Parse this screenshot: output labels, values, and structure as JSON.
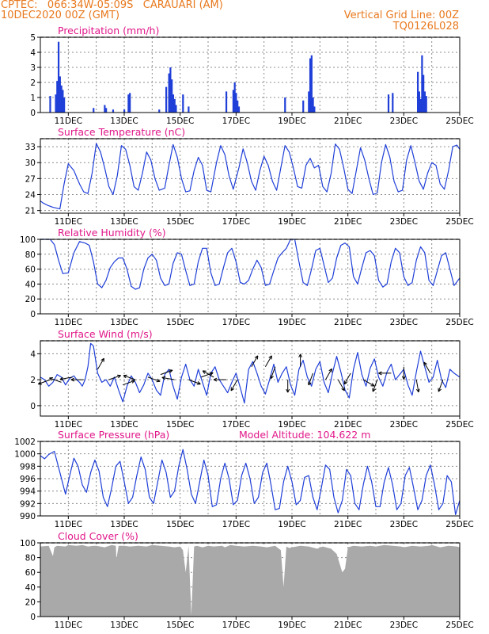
{
  "header": {
    "line1": "CPTEC:   066:34W-05:09S   CARAUARI (AM)",
    "line2": "10DEC2020 00Z (GMT)",
    "grid_note": "Vertical Grid Line: 00Z",
    "model_code": "TQ0126L028"
  },
  "colors": {
    "header": "#e8791e",
    "panel_title": "#e0178a",
    "series": "#1f3fd8",
    "cloud_fill": "#a9a9a9",
    "grid": "#8c8c8c"
  },
  "x_axis": {
    "start_day": 10,
    "end_day": 25,
    "tick_days": [
      11,
      13,
      15,
      17,
      19,
      21,
      23,
      25
    ],
    "tick_labels": [
      "11DEC",
      "13DEC",
      "15DEC",
      "17DEC",
      "19DEC",
      "21DEC",
      "23DEC",
      "25DEC"
    ],
    "vertical_grid_days": [
      11,
      12,
      13,
      14,
      15,
      16,
      17,
      18,
      19,
      20,
      21,
      22,
      23,
      24,
      25
    ]
  },
  "chart_data": [
    {
      "type": "bar",
      "title": "Precipitation (mm/h)",
      "ylim": [
        0,
        5
      ],
      "yticks": [
        0,
        1,
        2,
        3,
        4,
        5
      ],
      "x": [
        10.35,
        10.55,
        10.6,
        10.65,
        10.7,
        10.75,
        10.8,
        10.85,
        11.9,
        12.3,
        12.35,
        12.6,
        13.0,
        13.15,
        13.2,
        14.25,
        14.5,
        14.6,
        14.65,
        14.7,
        14.75,
        14.8,
        14.85,
        15.1,
        15.3,
        16.65,
        16.9,
        16.95,
        17.0,
        17.05,
        17.1,
        18.75,
        19.4,
        19.6,
        19.65,
        19.7,
        19.75,
        19.8,
        22.45,
        22.6,
        23.5,
        23.55,
        23.6,
        23.65,
        23.7,
        23.75,
        23.8
      ],
      "values": [
        1.1,
        1.2,
        2.1,
        4.7,
        2.4,
        1.8,
        1.5,
        1.0,
        0.3,
        0.5,
        0.3,
        0.2,
        0.2,
        1.2,
        1.3,
        0.2,
        1.7,
        2.6,
        3.0,
        2.2,
        1.2,
        0.9,
        0.5,
        1.2,
        0.4,
        1.4,
        1.5,
        2.0,
        1.3,
        0.8,
        0.4,
        1.0,
        0.8,
        1.4,
        3.6,
        3.8,
        1.0,
        0.4,
        1.2,
        1.3,
        2.7,
        1.4,
        0.9,
        3.8,
        2.5,
        1.4,
        1.1
      ]
    },
    {
      "type": "line",
      "title": "Surface Temperature (nC)",
      "ylim": [
        20.5,
        34.5
      ],
      "yticks": [
        21,
        24,
        27,
        30,
        33
      ],
      "x": [
        10.0,
        10.1,
        10.25,
        10.45,
        10.7,
        10.85,
        11.0,
        11.2,
        11.4,
        11.55,
        11.7,
        11.85,
        12.0,
        12.15,
        12.3,
        12.45,
        12.6,
        12.75,
        12.9,
        13.05,
        13.2,
        13.35,
        13.5,
        13.65,
        13.8,
        13.95,
        14.1,
        14.25,
        14.45,
        14.6,
        14.75,
        14.9,
        15.05,
        15.2,
        15.35,
        15.5,
        15.65,
        15.8,
        15.95,
        16.1,
        16.3,
        16.45,
        16.6,
        16.75,
        16.9,
        17.1,
        17.25,
        17.4,
        17.55,
        17.7,
        17.85,
        18.0,
        18.15,
        18.3,
        18.45,
        18.6,
        18.75,
        18.9,
        19.05,
        19.2,
        19.35,
        19.5,
        19.65,
        19.8,
        19.95,
        20.1,
        20.25,
        20.4,
        20.55,
        20.7,
        20.85,
        21.0,
        21.15,
        21.3,
        21.45,
        21.6,
        21.75,
        21.9,
        22.05,
        22.2,
        22.35,
        22.5,
        22.65,
        22.8,
        22.95,
        23.1,
        23.25,
        23.4,
        23.55,
        23.7,
        23.85,
        24.0,
        24.15,
        24.3,
        24.45,
        24.6,
        24.75,
        24.9,
        25.0
      ],
      "values": [
        22.8,
        22.4,
        22.0,
        21.6,
        21.3,
        26.0,
        29.8,
        28.5,
        26.0,
        24.5,
        24.2,
        28.0,
        33.6,
        32.0,
        29.0,
        25.5,
        24.0,
        27.5,
        33.2,
        32.5,
        29.5,
        25.5,
        24.8,
        28.0,
        32.0,
        30.5,
        27.0,
        24.8,
        25.2,
        29.5,
        33.4,
        31.0,
        27.0,
        24.5,
        24.7,
        28.5,
        31.0,
        29.5,
        24.8,
        24.5,
        30.0,
        33.2,
        31.5,
        27.5,
        25.0,
        29.0,
        32.6,
        30.0,
        26.5,
        24.8,
        28.5,
        31.2,
        29.5,
        26.5,
        24.8,
        29.0,
        33.2,
        32.0,
        29.0,
        25.5,
        25.2,
        29.5,
        30.8,
        29.0,
        29.5,
        25.5,
        24.5,
        28.0,
        33.5,
        32.5,
        29.0,
        25.0,
        24.2,
        28.5,
        32.8,
        30.5,
        27.0,
        24.0,
        24.3,
        30.0,
        33.4,
        31.0,
        26.5,
        24.5,
        24.8,
        30.5,
        33.2,
        30.0,
        26.5,
        25.0,
        28.0,
        30.0,
        29.5,
        26.0,
        25.0,
        28.5,
        33.0,
        33.3,
        32.5
      ]
    },
    {
      "type": "line",
      "title": "Relative Humidity (%)",
      "ylim": [
        0,
        100
      ],
      "yticks": [
        0,
        20,
        40,
        60,
        80,
        100
      ],
      "x": [
        10.0,
        10.2,
        10.35,
        10.5,
        10.65,
        10.8,
        11.0,
        11.2,
        11.4,
        11.6,
        11.75,
        11.9,
        12.05,
        12.2,
        12.35,
        12.5,
        12.65,
        12.8,
        12.95,
        13.1,
        13.25,
        13.4,
        13.55,
        13.7,
        13.85,
        14.0,
        14.15,
        14.3,
        14.45,
        14.6,
        14.75,
        14.9,
        15.05,
        15.2,
        15.35,
        15.5,
        15.65,
        15.8,
        15.95,
        16.1,
        16.25,
        16.4,
        16.55,
        16.7,
        16.85,
        17.0,
        17.15,
        17.3,
        17.45,
        17.6,
        17.75,
        17.9,
        18.05,
        18.2,
        18.35,
        18.5,
        18.65,
        18.8,
        18.95,
        19.1,
        19.25,
        19.4,
        19.55,
        19.7,
        19.85,
        20.0,
        20.15,
        20.3,
        20.45,
        20.6,
        20.75,
        20.9,
        21.05,
        21.2,
        21.35,
        21.5,
        21.65,
        21.8,
        21.95,
        22.1,
        22.25,
        22.4,
        22.55,
        22.7,
        22.85,
        23.0,
        23.15,
        23.3,
        23.45,
        23.6,
        23.75,
        23.9,
        24.05,
        24.2,
        24.35,
        24.5,
        24.65,
        24.8,
        25.0
      ],
      "values": [
        100,
        100,
        100,
        93,
        72,
        54,
        55,
        82,
        97,
        95,
        92,
        70,
        40,
        35,
        45,
        62,
        70,
        75,
        75,
        60,
        37,
        33,
        35,
        60,
        75,
        80,
        72,
        48,
        38,
        40,
        68,
        82,
        80,
        58,
        38,
        40,
        70,
        88,
        88,
        55,
        38,
        40,
        62,
        82,
        88,
        70,
        42,
        40,
        45,
        60,
        72,
        62,
        38,
        40,
        58,
        75,
        82,
        88,
        100,
        100,
        70,
        42,
        38,
        60,
        85,
        88,
        65,
        42,
        48,
        75,
        92,
        95,
        90,
        50,
        40,
        62,
        82,
        85,
        78,
        45,
        36,
        40,
        70,
        88,
        82,
        50,
        38,
        42,
        72,
        90,
        82,
        45,
        38,
        58,
        78,
        82,
        60,
        38,
        48
      ]
    },
    {
      "type": "line",
      "title": "Surface Wind (m/s)",
      "ylim": [
        -0.8,
        5.0
      ],
      "yticks": [
        0,
        2,
        4
      ],
      "x": [
        10.0,
        10.15,
        10.3,
        10.45,
        10.6,
        10.75,
        10.9,
        11.05,
        11.2,
        11.3,
        11.4,
        11.5,
        11.6,
        11.7,
        11.8,
        11.9,
        12.05,
        12.2,
        12.35,
        12.5,
        12.65,
        12.8,
        12.95,
        13.1,
        13.25,
        13.4,
        13.55,
        13.7,
        13.85,
        14.0,
        14.15,
        14.3,
        14.45,
        14.6,
        14.75,
        14.9,
        15.05,
        15.2,
        15.35,
        15.5,
        15.65,
        15.8,
        15.95,
        16.1,
        16.25,
        16.4,
        16.55,
        16.7,
        16.85,
        17.0,
        17.15,
        17.3,
        17.45,
        17.6,
        17.75,
        17.9,
        18.05,
        18.2,
        18.35,
        18.5,
        18.65,
        18.8,
        18.95,
        19.1,
        19.25,
        19.4,
        19.55,
        19.7,
        19.85,
        20.0,
        20.15,
        20.3,
        20.45,
        20.6,
        20.75,
        20.9,
        21.05,
        21.2,
        21.35,
        21.5,
        21.65,
        21.8,
        21.95,
        22.1,
        22.25,
        22.4,
        22.55,
        22.7,
        22.85,
        23.0,
        23.15,
        23.3,
        23.45,
        23.6,
        23.75,
        23.9,
        24.05,
        24.2,
        24.35,
        24.5,
        24.65,
        24.8,
        25.0
      ],
      "values": [
        2.2,
        2.0,
        1.5,
        1.8,
        2.4,
        2.2,
        1.6,
        2.1,
        2.3,
        2.0,
        1.8,
        1.5,
        2.0,
        3.0,
        4.8,
        4.6,
        2.5,
        1.8,
        2.0,
        1.5,
        2.2,
        1.2,
        0.3,
        1.5,
        2.3,
        1.8,
        1.0,
        1.6,
        2.5,
        2.0,
        1.2,
        0.8,
        2.4,
        2.8,
        1.5,
        0.5,
        2.2,
        3.2,
        2.0,
        1.5,
        2.8,
        1.8,
        0.8,
        2.5,
        3.0,
        2.0,
        1.5,
        1.0,
        1.8,
        2.5,
        1.4,
        0.2,
        2.8,
        3.4,
        2.5,
        1.5,
        0.9,
        2.0,
        3.2,
        1.8,
        2.5,
        3.0,
        1.6,
        0.8,
        2.8,
        3.5,
        2.2,
        1.5,
        2.8,
        3.4,
        1.8,
        1.0,
        2.5,
        3.8,
        2.6,
        1.2,
        0.6,
        2.8,
        4.1,
        2.4,
        1.5,
        2.9,
        3.6,
        2.2,
        1.5,
        2.6,
        3.2,
        2.0,
        2.4,
        2.8,
        1.6,
        0.8,
        2.6,
        4.2,
        3.0,
        1.8,
        2.2,
        3.5,
        2.0,
        1.4,
        2.8,
        2.5,
        2.2
      ],
      "arrows": {
        "x": [
          10.35,
          10.75,
          11.15,
          11.55,
          12.05,
          12.45,
          12.95,
          13.4,
          13.85,
          14.3,
          14.8,
          15.3,
          15.75,
          16.2,
          16.65,
          17.05,
          17.55,
          18.05,
          18.4,
          18.85,
          19.3,
          19.75,
          20.2,
          20.65,
          21.1,
          21.55,
          22.05,
          22.55,
          23.0,
          23.45,
          23.95,
          24.4
        ],
        "speed": [
          2.0,
          1.8,
          2.2,
          2.0,
          2.8,
          2.0,
          1.6,
          2.0,
          2.2,
          2.4,
          2.0,
          2.0,
          2.2,
          2.2,
          2.0,
          2.0,
          3.0,
          3.0,
          3.0,
          2.0,
          3.0,
          2.5,
          2.0,
          2.0,
          2.5,
          2.0,
          2.0,
          2.5,
          3.0,
          2.0,
          2.5,
          2.0
        ],
        "dir_deg": [
          200,
          160,
          190,
          180,
          60,
          20,
          20,
          160,
          340,
          20,
          170,
          340,
          20,
          150,
          180,
          240,
          60,
          60,
          250,
          270,
          90,
          250,
          60,
          300,
          240,
          330,
          250,
          180,
          270,
          280,
          120,
          250
        ]
      }
    },
    {
      "type": "line",
      "title": "Surface Pressure (hPa)",
      "annotation": "Model Altitude: 104.622 m",
      "ylim": [
        990,
        1002
      ],
      "yticks": [
        990,
        992,
        994,
        996,
        998,
        1000,
        1002
      ],
      "x": [
        10.0,
        10.15,
        10.3,
        10.5,
        10.7,
        10.9,
        11.05,
        11.2,
        11.35,
        11.5,
        11.65,
        11.8,
        11.95,
        12.1,
        12.25,
        12.4,
        12.55,
        12.7,
        12.85,
        13.0,
        13.15,
        13.3,
        13.45,
        13.6,
        13.75,
        13.9,
        14.05,
        14.2,
        14.35,
        14.5,
        14.65,
        14.8,
        14.95,
        15.1,
        15.25,
        15.4,
        15.55,
        15.7,
        15.85,
        16.0,
        16.15,
        16.3,
        16.45,
        16.6,
        16.75,
        16.9,
        17.05,
        17.2,
        17.35,
        17.5,
        17.65,
        17.8,
        17.95,
        18.1,
        18.25,
        18.4,
        18.55,
        18.7,
        18.85,
        19.0,
        19.15,
        19.3,
        19.45,
        19.6,
        19.75,
        19.9,
        20.05,
        20.2,
        20.35,
        20.5,
        20.65,
        20.8,
        20.95,
        21.1,
        21.25,
        21.4,
        21.55,
        21.7,
        21.85,
        22.0,
        22.15,
        22.3,
        22.45,
        22.6,
        22.75,
        22.9,
        23.05,
        23.2,
        23.35,
        23.5,
        23.65,
        23.8,
        23.95,
        24.1,
        24.25,
        24.4,
        24.55,
        24.7,
        24.85,
        25.0
      ],
      "values": [
        999.7,
        999.2,
        999.9,
        1000.4,
        997.0,
        993.5,
        996.5,
        999.3,
        998.0,
        995.0,
        993.8,
        997.0,
        999.0,
        997.2,
        993.0,
        991.5,
        994.5,
        998.0,
        998.8,
        995.5,
        992.0,
        993.0,
        996.5,
        999.5,
        997.5,
        993.0,
        992.0,
        995.5,
        999.0,
        997.0,
        993.0,
        994.0,
        998.0,
        1000.7,
        997.5,
        993.5,
        992.0,
        995.5,
        999.0,
        996.5,
        991.5,
        991.8,
        996.0,
        998.5,
        996.0,
        991.8,
        992.5,
        996.5,
        998.5,
        996.0,
        992.0,
        993.0,
        997.0,
        998.5,
        995.0,
        991.0,
        991.2,
        995.5,
        998.0,
        995.5,
        991.8,
        992.5,
        996.2,
        996.5,
        993.0,
        991.0,
        994.5,
        998.2,
        997.5,
        993.0,
        990.5,
        992.5,
        997.5,
        996.5,
        992.0,
        991.0,
        995.0,
        998.0,
        995.5,
        991.5,
        991.5,
        995.5,
        997.8,
        995.0,
        991.0,
        992.0,
        996.5,
        997.8,
        994.5,
        991.0,
        992.5,
        996.5,
        998.2,
        995.0,
        991.0,
        992.0,
        996.5,
        995.5,
        990.2,
        992.5
      ]
    },
    {
      "type": "area",
      "title": "Cloud Cover (%)",
      "ylim": [
        0,
        100
      ],
      "yticks": [
        0,
        20,
        40,
        60,
        80,
        100
      ],
      "x": [
        10.0,
        10.3,
        10.45,
        10.5,
        10.6,
        10.9,
        11.0,
        11.3,
        11.5,
        11.7,
        11.9,
        12.0,
        12.3,
        12.55,
        12.7,
        12.72,
        12.8,
        13.0,
        13.2,
        13.5,
        13.8,
        14.0,
        14.3,
        14.6,
        14.8,
        15.0,
        15.1,
        15.2,
        15.3,
        15.4,
        15.5,
        15.6,
        15.8,
        16.0,
        16.2,
        16.5,
        16.6,
        16.8,
        17.0,
        17.3,
        17.6,
        17.9,
        18.1,
        18.4,
        18.6,
        18.7,
        18.8,
        18.9,
        19.0,
        19.3,
        19.6,
        19.9,
        20.1,
        20.4,
        20.6,
        20.8,
        20.9,
        21.0,
        21.2,
        21.5,
        21.8,
        22.0,
        22.3,
        22.6,
        22.9,
        23.0,
        23.3,
        23.6,
        23.9,
        24.0,
        24.3,
        24.6,
        24.9,
        25.0
      ],
      "values": [
        95,
        96,
        82,
        94,
        96,
        95,
        97,
        96,
        97,
        95,
        96,
        96,
        94,
        97,
        96,
        78,
        96,
        96,
        95,
        96,
        95,
        97,
        96,
        95,
        94,
        95,
        90,
        60,
        96,
        2,
        95,
        96,
        94,
        96,
        95,
        96,
        94,
        97,
        96,
        95,
        96,
        95,
        94,
        96,
        90,
        40,
        95,
        93,
        94,
        96,
        95,
        92,
        95,
        92,
        85,
        60,
        65,
        94,
        96,
        95,
        96,
        95,
        97,
        96,
        95,
        94,
        96,
        95,
        96,
        97,
        94,
        96,
        95,
        94
      ]
    }
  ]
}
